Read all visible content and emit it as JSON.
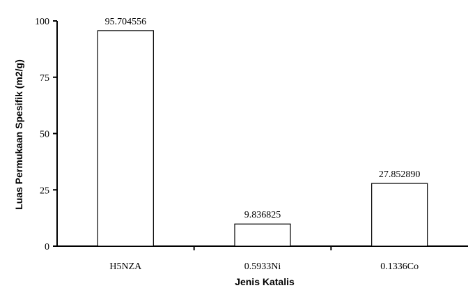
{
  "chart_data": {
    "type": "bar",
    "categories": [
      "H5NZA",
      "0.5933Ni",
      "0.1336Co"
    ],
    "values": [
      95.704556,
      9.836825,
      27.85289
    ],
    "data_labels": [
      "95.704556",
      "9.836825",
      "27.852890"
    ],
    "title": "",
    "xlabel": "Jenis Katalis",
    "ylabel": "Luas Permukaan Spesifik (m2/g)",
    "ylim": [
      0,
      100
    ],
    "yticks": [
      0,
      25,
      50,
      75,
      100
    ],
    "grid": false,
    "legend": "none",
    "bar_fill": "#ffffff",
    "bar_stroke": "#000000"
  }
}
